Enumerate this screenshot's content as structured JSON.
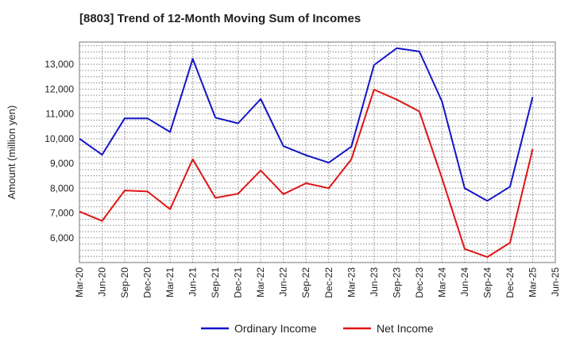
{
  "chart_data": {
    "type": "line",
    "title": "[8803]  Trend of 12-Month Moving Sum of Incomes",
    "ylabel": "Amount (million yen)",
    "xlabel": "",
    "ylim": [
      5000,
      13900
    ],
    "yticks": [
      6000,
      7000,
      8000,
      9000,
      10000,
      11000,
      12000,
      13000
    ],
    "ytick_labels": [
      "6,000",
      "7,000",
      "8,000",
      "9,000",
      "10,000",
      "11,000",
      "12,000",
      "13,000"
    ],
    "categories": [
      "Mar-20",
      "Jun-20",
      "Sep-20",
      "Dec-20",
      "Mar-21",
      "Jun-21",
      "Sep-21",
      "Dec-21",
      "Mar-22",
      "Jun-22",
      "Sep-22",
      "Dec-22",
      "Mar-23",
      "Jun-23",
      "Sep-23",
      "Dec-23",
      "Mar-24",
      "Jun-24",
      "Sep-24",
      "Dec-24",
      "Mar-25",
      "Jun-25"
    ],
    "grid": true,
    "legend_position": "bottom",
    "series": [
      {
        "name": "Ordinary Income",
        "color": "#1414c8",
        "values": [
          10000,
          9350,
          10820,
          10820,
          10270,
          13220,
          10850,
          10620,
          11600,
          9700,
          9330,
          9030,
          9680,
          12970,
          13650,
          13520,
          11500,
          8000,
          7490,
          8060,
          11680,
          null
        ]
      },
      {
        "name": "Net Income",
        "color": "#e01414",
        "values": [
          7060,
          6680,
          7910,
          7870,
          7150,
          9170,
          7610,
          7780,
          8720,
          7760,
          8200,
          8000,
          9170,
          11980,
          11580,
          11100,
          8400,
          5550,
          5220,
          5800,
          9580,
          null
        ]
      }
    ]
  }
}
